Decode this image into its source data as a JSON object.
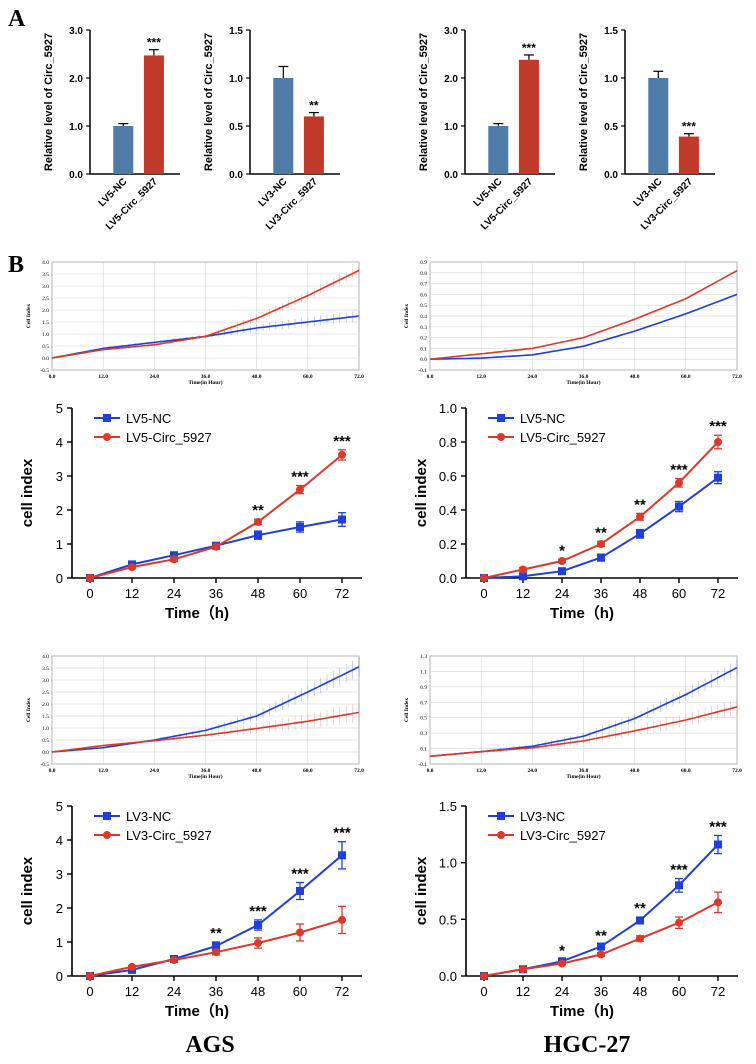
{
  "panel_labels": {
    "a": "A",
    "b": "B"
  },
  "bottom_labels": {
    "left": "AGS",
    "right": "HGC-27"
  },
  "colors": {
    "blue_bar": "#4f7ba8",
    "red_bar": "#c0392b",
    "blue_line": "#1f3fd6",
    "red_line": "#d93a2b"
  },
  "chart_data": [
    {
      "id": "barA1",
      "type": "bar",
      "ylabel": "Relative level of Circ_5927",
      "ylim": [
        0,
        3.0
      ],
      "yticks": [
        "0.0",
        "1.0",
        "2.0",
        "3.0"
      ],
      "categories": [
        "LV5-NC",
        "LV5-Circ_5927"
      ],
      "values": [
        1.0,
        2.47
      ],
      "errors": [
        0.05,
        0.12
      ],
      "sig": [
        "",
        "***"
      ]
    },
    {
      "id": "barA2",
      "type": "bar",
      "ylabel": "Relative level of Circ_5927",
      "ylim": [
        0,
        1.5
      ],
      "yticks": [
        "0.0",
        "0.5",
        "1.0",
        "1.5"
      ],
      "categories": [
        "LV3-NC",
        "LV3-Circ_5927"
      ],
      "values": [
        1.0,
        0.6
      ],
      "errors": [
        0.12,
        0.04
      ],
      "sig": [
        "",
        "**"
      ]
    },
    {
      "id": "barA3",
      "type": "bar",
      "ylabel": "Relative level of Circ_5927",
      "ylim": [
        0,
        3.0
      ],
      "yticks": [
        "0.0",
        "1.0",
        "2.0",
        "3.0"
      ],
      "categories": [
        "LV5-NC",
        "LV5-Circ_5927"
      ],
      "values": [
        1.0,
        2.38
      ],
      "errors": [
        0.05,
        0.1
      ],
      "sig": [
        "",
        "***"
      ]
    },
    {
      "id": "barA4",
      "type": "bar",
      "ylabel": "Relative level of Circ_5927",
      "ylim": [
        0,
        1.5
      ],
      "yticks": [
        "0.0",
        "0.5",
        "1.0",
        "1.5"
      ],
      "categories": [
        "LV3-NC",
        "LV3-Circ_5927"
      ],
      "values": [
        1.0,
        0.39
      ],
      "errors": [
        0.07,
        0.03
      ],
      "sig": [
        "",
        "***"
      ]
    },
    {
      "id": "rt1",
      "type": "line",
      "xlabel": "Time(in Hour)",
      "ylabel": "Cell Index",
      "ylim": [
        -0.5,
        4.0
      ],
      "yticks": [
        "-0.5",
        "0.0",
        "0.5",
        "1.0",
        "1.5",
        "2.0",
        "2.5",
        "3.0",
        "3.5",
        "4.0"
      ],
      "xticks": [
        "0.0",
        "12.0",
        "24.0",
        "36.0",
        "48.0",
        "60.0",
        "72.0"
      ],
      "series": [
        {
          "name": "blue",
          "x": [
            0,
            12,
            24,
            36,
            48,
            60,
            72
          ],
          "values": [
            0,
            0.4,
            0.65,
            0.9,
            1.25,
            1.5,
            1.75
          ],
          "err": [
            0.02,
            0.05,
            0.06,
            0.08,
            0.15,
            0.2,
            0.22
          ]
        },
        {
          "name": "red",
          "x": [
            0,
            12,
            24,
            36,
            48,
            60,
            72
          ],
          "values": [
            0,
            0.35,
            0.55,
            0.9,
            1.65,
            2.6,
            3.65
          ],
          "err": [
            0.02,
            0.05,
            0.06,
            0.08,
            0.15,
            0.18,
            0.2
          ]
        }
      ]
    },
    {
      "id": "rt2",
      "type": "line",
      "xlabel": "Time(in Hour)",
      "ylabel": "Cell Index",
      "ylim": [
        -0.1,
        0.9
      ],
      "yticks": [
        "-0.1",
        "0.0",
        "0.1",
        "0.2",
        "0.3",
        "0.4",
        "0.5",
        "0.6",
        "0.7",
        "0.8",
        "0.9"
      ],
      "xticks": [
        "0.0",
        "12.0",
        "24.0",
        "36.0",
        "48.0",
        "60.0",
        "72.0"
      ],
      "series": [
        {
          "name": "blue",
          "x": [
            0,
            12,
            24,
            36,
            48,
            60,
            72
          ],
          "values": [
            0,
            0.01,
            0.04,
            0.12,
            0.26,
            0.42,
            0.6
          ],
          "err": [
            0,
            0,
            0,
            0,
            0,
            0,
            0
          ]
        },
        {
          "name": "red",
          "x": [
            0,
            12,
            24,
            36,
            48,
            60,
            72
          ],
          "values": [
            0,
            0.05,
            0.1,
            0.2,
            0.37,
            0.56,
            0.82
          ],
          "err": [
            0,
            0,
            0,
            0,
            0,
            0,
            0
          ]
        }
      ]
    },
    {
      "id": "rt3",
      "type": "line",
      "xlabel": "Time(in Hour)",
      "ylabel": "Cell Index",
      "ylim": [
        -0.5,
        4.0
      ],
      "yticks": [
        "-0.5",
        "0.0",
        "0.5",
        "1.0",
        "1.5",
        "2.0",
        "2.5",
        "3.0",
        "3.5",
        "4.0"
      ],
      "xticks": [
        "0.0",
        "12.0",
        "24.0",
        "36.0",
        "48.0",
        "60.0",
        "72.0"
      ],
      "series": [
        {
          "name": "blue",
          "x": [
            0,
            12,
            24,
            36,
            48,
            60,
            72
          ],
          "values": [
            0,
            0.18,
            0.5,
            0.9,
            1.5,
            2.5,
            3.55
          ],
          "err": [
            0.02,
            0.04,
            0.06,
            0.1,
            0.2,
            0.3,
            0.4
          ]
        },
        {
          "name": "red",
          "x": [
            0,
            12,
            24,
            36,
            48,
            60,
            72
          ],
          "values": [
            0,
            0.27,
            0.47,
            0.7,
            0.98,
            1.28,
            1.65
          ],
          "err": [
            0.02,
            0.04,
            0.06,
            0.1,
            0.2,
            0.3,
            0.4
          ]
        }
      ]
    },
    {
      "id": "rt4",
      "type": "line",
      "xlabel": "Time(in Hour)",
      "ylabel": "Cell Index",
      "ylim": [
        -0.1,
        1.3
      ],
      "yticks": [
        "-0.1",
        "0.1",
        "0.3",
        "0.5",
        "0.7",
        "0.9",
        "1.1",
        "1.3"
      ],
      "xticks": [
        "0.0",
        "12.0",
        "24.0",
        "36.0",
        "48.0",
        "60.0",
        "72.0"
      ],
      "series": [
        {
          "name": "blue",
          "x": [
            0,
            12,
            24,
            36,
            48,
            60,
            72
          ],
          "values": [
            0,
            0.06,
            0.13,
            0.26,
            0.49,
            0.8,
            1.15
          ],
          "err": [
            0.01,
            0.02,
            0.03,
            0.04,
            0.06,
            0.08,
            0.1
          ]
        },
        {
          "name": "red",
          "x": [
            0,
            12,
            24,
            36,
            48,
            60,
            72
          ],
          "values": [
            0,
            0.06,
            0.11,
            0.2,
            0.33,
            0.47,
            0.64
          ],
          "err": [
            0.01,
            0.02,
            0.03,
            0.04,
            0.06,
            0.08,
            0.1
          ]
        }
      ]
    },
    {
      "id": "ln1",
      "type": "line",
      "xlabel": "Time（h)",
      "ylabel": "cell index",
      "ylim": [
        0,
        5
      ],
      "yticks": [
        "0",
        "1",
        "2",
        "3",
        "4",
        "5"
      ],
      "xticks": [
        "0",
        "12",
        "24",
        "36",
        "48",
        "60",
        "72"
      ],
      "legend": [
        "LV5-NC",
        "LV5-Circ_5927"
      ],
      "series": [
        {
          "name": "LV5-NC",
          "marker": "square",
          "x": [
            0,
            12,
            24,
            36,
            48,
            60,
            72
          ],
          "values": [
            0,
            0.4,
            0.67,
            0.95,
            1.26,
            1.5,
            1.72
          ],
          "err": [
            0.02,
            0.05,
            0.06,
            0.07,
            0.12,
            0.15,
            0.2
          ]
        },
        {
          "name": "LV5-Circ_5927",
          "marker": "circle",
          "x": [
            0,
            12,
            24,
            36,
            48,
            60,
            72
          ],
          "values": [
            0,
            0.32,
            0.55,
            0.92,
            1.65,
            2.6,
            3.62
          ],
          "err": [
            0.02,
            0.05,
            0.06,
            0.07,
            0.08,
            0.12,
            0.15
          ]
        }
      ],
      "sig": [
        {
          "x": 48,
          "text": "**"
        },
        {
          "x": 60,
          "text": "***"
        },
        {
          "x": 72,
          "text": "***"
        }
      ]
    },
    {
      "id": "ln2",
      "type": "line",
      "xlabel": "Time（h)",
      "ylabel": "cell index",
      "ylim": [
        0,
        1.0
      ],
      "yticks": [
        "0.0",
        "0.2",
        "0.4",
        "0.6",
        "0.8",
        "1.0"
      ],
      "xticks": [
        "0",
        "12",
        "24",
        "36",
        "48",
        "60",
        "72"
      ],
      "legend": [
        "LV5-NC",
        "LV5-Circ_5927"
      ],
      "series": [
        {
          "name": "LV5-NC",
          "marker": "square",
          "x": [
            0,
            12,
            24,
            36,
            48,
            60,
            72
          ],
          "values": [
            0,
            0.01,
            0.04,
            0.12,
            0.26,
            0.42,
            0.59
          ],
          "err": [
            0.005,
            0.01,
            0.01,
            0.02,
            0.025,
            0.03,
            0.035
          ]
        },
        {
          "name": "LV5-Circ_5927",
          "marker": "circle",
          "x": [
            0,
            12,
            24,
            36,
            48,
            60,
            72
          ],
          "values": [
            0,
            0.05,
            0.1,
            0.2,
            0.36,
            0.56,
            0.8
          ],
          "err": [
            0.005,
            0.01,
            0.01,
            0.015,
            0.02,
            0.025,
            0.04
          ]
        }
      ],
      "sig": [
        {
          "x": 24,
          "text": "*"
        },
        {
          "x": 36,
          "text": "**"
        },
        {
          "x": 48,
          "text": "**"
        },
        {
          "x": 60,
          "text": "***"
        },
        {
          "x": 72,
          "text": "***"
        }
      ]
    },
    {
      "id": "ln3",
      "type": "line",
      "xlabel": "Time（h)",
      "ylabel": "cell index",
      "ylim": [
        0,
        5
      ],
      "yticks": [
        "0",
        "1",
        "2",
        "3",
        "4",
        "5"
      ],
      "xticks": [
        "0",
        "12",
        "24",
        "36",
        "48",
        "60",
        "72"
      ],
      "legend": [
        "LV3-NC",
        "LV3-Circ_5927"
      ],
      "series": [
        {
          "name": "LV3-NC",
          "marker": "square",
          "x": [
            0,
            12,
            24,
            36,
            48,
            60,
            72
          ],
          "values": [
            0,
            0.18,
            0.5,
            0.88,
            1.5,
            2.5,
            3.55
          ],
          "err": [
            0.02,
            0.04,
            0.06,
            0.12,
            0.15,
            0.25,
            0.4
          ]
        },
        {
          "name": "LV3-Circ_5927",
          "marker": "circle",
          "x": [
            0,
            12,
            24,
            36,
            48,
            60,
            72
          ],
          "values": [
            0,
            0.27,
            0.47,
            0.7,
            0.97,
            1.28,
            1.65
          ],
          "err": [
            0.02,
            0.04,
            0.05,
            0.08,
            0.15,
            0.25,
            0.4
          ]
        }
      ],
      "sig": [
        {
          "x": 36,
          "text": "**"
        },
        {
          "x": 48,
          "text": "***"
        },
        {
          "x": 60,
          "text": "***"
        },
        {
          "x": 72,
          "text": "***"
        }
      ]
    },
    {
      "id": "ln4",
      "type": "line",
      "xlabel": "Time（h)",
      "ylabel": "cell index",
      "ylim": [
        0,
        1.5
      ],
      "yticks": [
        "0.0",
        "0.5",
        "1.0",
        "1.5"
      ],
      "xticks": [
        "0",
        "12",
        "24",
        "36",
        "48",
        "60",
        "72"
      ],
      "legend": [
        "LV3-NC",
        "LV3-Circ_5927"
      ],
      "series": [
        {
          "name": "LV3-NC",
          "marker": "square",
          "x": [
            0,
            12,
            24,
            36,
            48,
            60,
            72
          ],
          "values": [
            0,
            0.06,
            0.13,
            0.26,
            0.49,
            0.8,
            1.16
          ],
          "err": [
            0.005,
            0.01,
            0.015,
            0.02,
            0.03,
            0.06,
            0.08
          ]
        },
        {
          "name": "LV3-Circ_5927",
          "marker": "circle",
          "x": [
            0,
            12,
            24,
            36,
            48,
            60,
            72
          ],
          "values": [
            0,
            0.06,
            0.11,
            0.19,
            0.33,
            0.47,
            0.65
          ],
          "err": [
            0.005,
            0.01,
            0.01,
            0.015,
            0.025,
            0.05,
            0.09
          ]
        }
      ],
      "sig": [
        {
          "x": 24,
          "text": "*"
        },
        {
          "x": 36,
          "text": "**"
        },
        {
          "x": 48,
          "text": "**"
        },
        {
          "x": 60,
          "text": "***"
        },
        {
          "x": 72,
          "text": "***"
        }
      ]
    }
  ]
}
